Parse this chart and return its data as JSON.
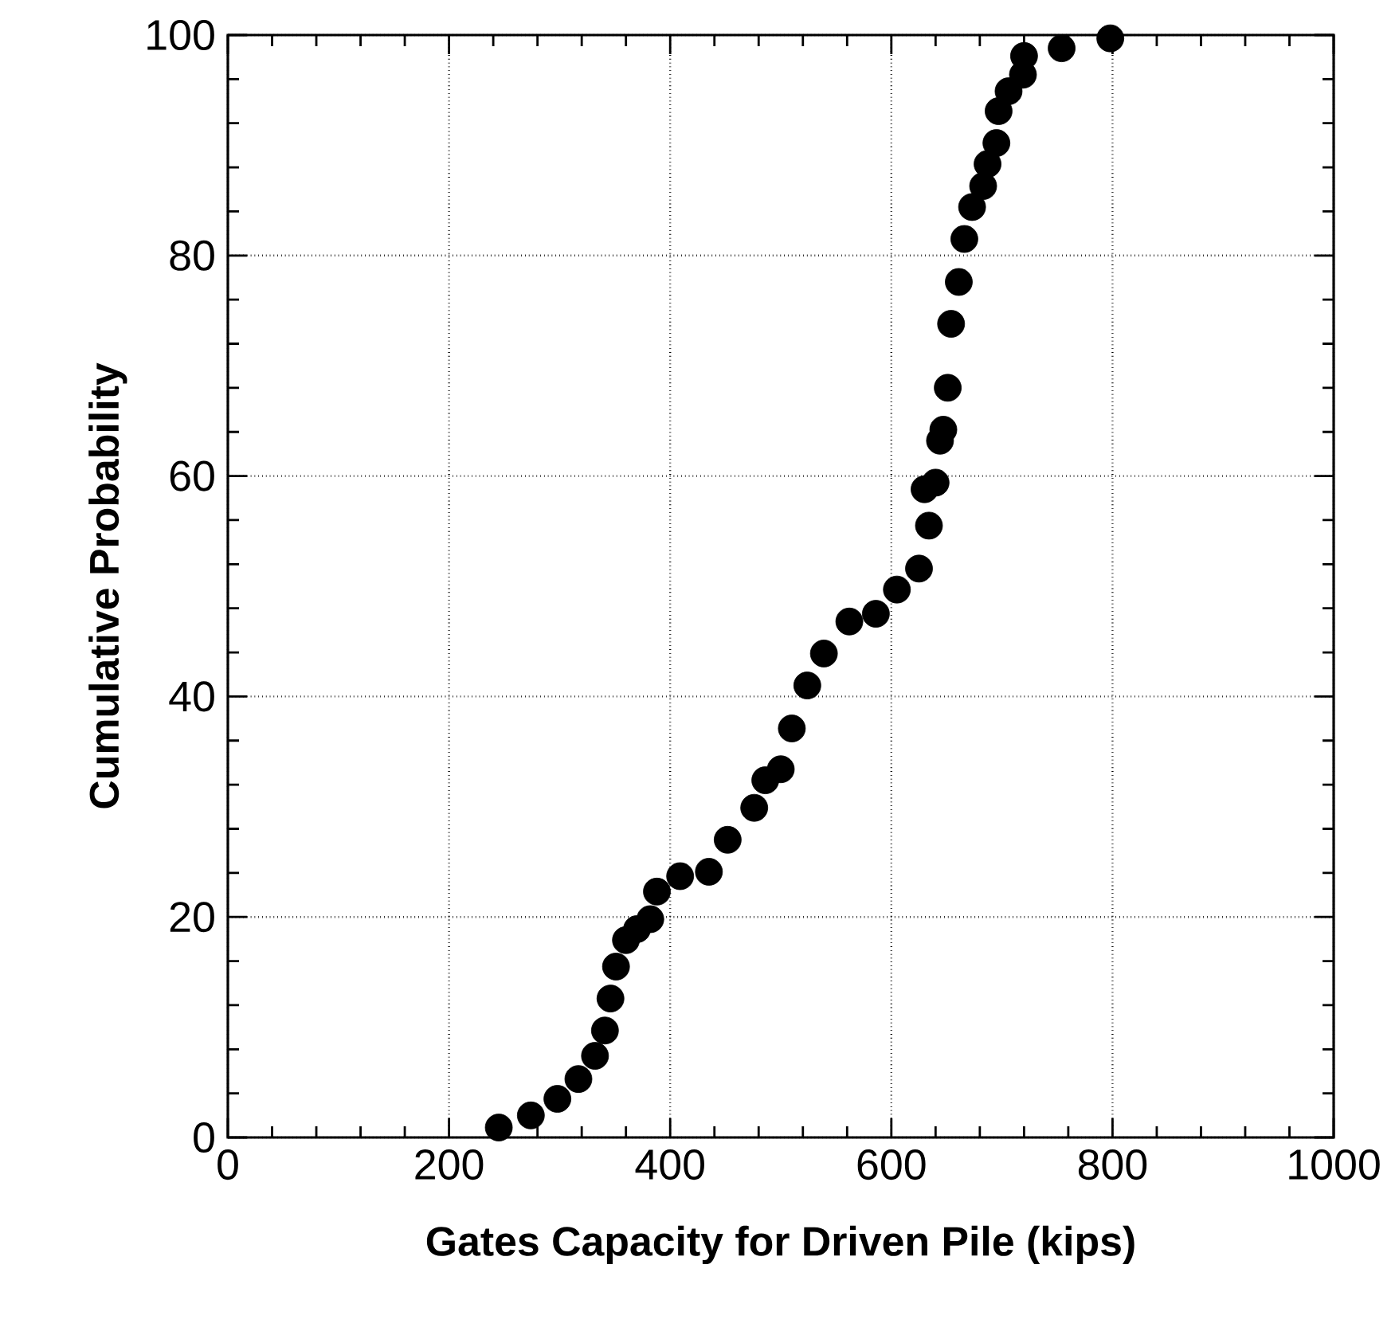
{
  "chart_data": {
    "type": "scatter",
    "xlabel": "Gates Capacity for Driven Pile (kips)",
    "ylabel": "Cumulative Probability",
    "xlim": [
      0,
      1000
    ],
    "ylim": [
      0,
      100
    ],
    "xticks": [
      0,
      200,
      400,
      600,
      800,
      1000
    ],
    "yticks": [
      0,
      20,
      40,
      60,
      80,
      100
    ],
    "grid": true,
    "series": [
      {
        "color": "#000000",
        "x": [
          245,
          274,
          298,
          317,
          332,
          341,
          346,
          351,
          360,
          370,
          382,
          388,
          409,
          435,
          452,
          476,
          486,
          500,
          510,
          524,
          539,
          562,
          586,
          605,
          625,
          630,
          634,
          640,
          644,
          647,
          651,
          654,
          661,
          666,
          673,
          683,
          687,
          695,
          697,
          706,
          719,
          720,
          754,
          798
        ],
        "values": [
          0.9,
          2,
          3.5,
          5.3,
          7.4,
          9.7,
          12.6,
          15.5,
          17.9,
          18.9,
          19.8,
          22.3,
          23.7,
          24.1,
          27,
          29.9,
          32.4,
          33.4,
          37.1,
          41,
          43.9,
          46.8,
          47.5,
          49.7,
          51.6,
          58.8,
          55.5,
          59.4,
          63.2,
          64.2,
          68,
          73.8,
          77.6,
          81.5,
          84.4,
          86.3,
          88.3,
          90.2,
          93.1,
          94.9,
          96.4,
          98.1,
          98.8,
          99.7
        ]
      }
    ]
  }
}
